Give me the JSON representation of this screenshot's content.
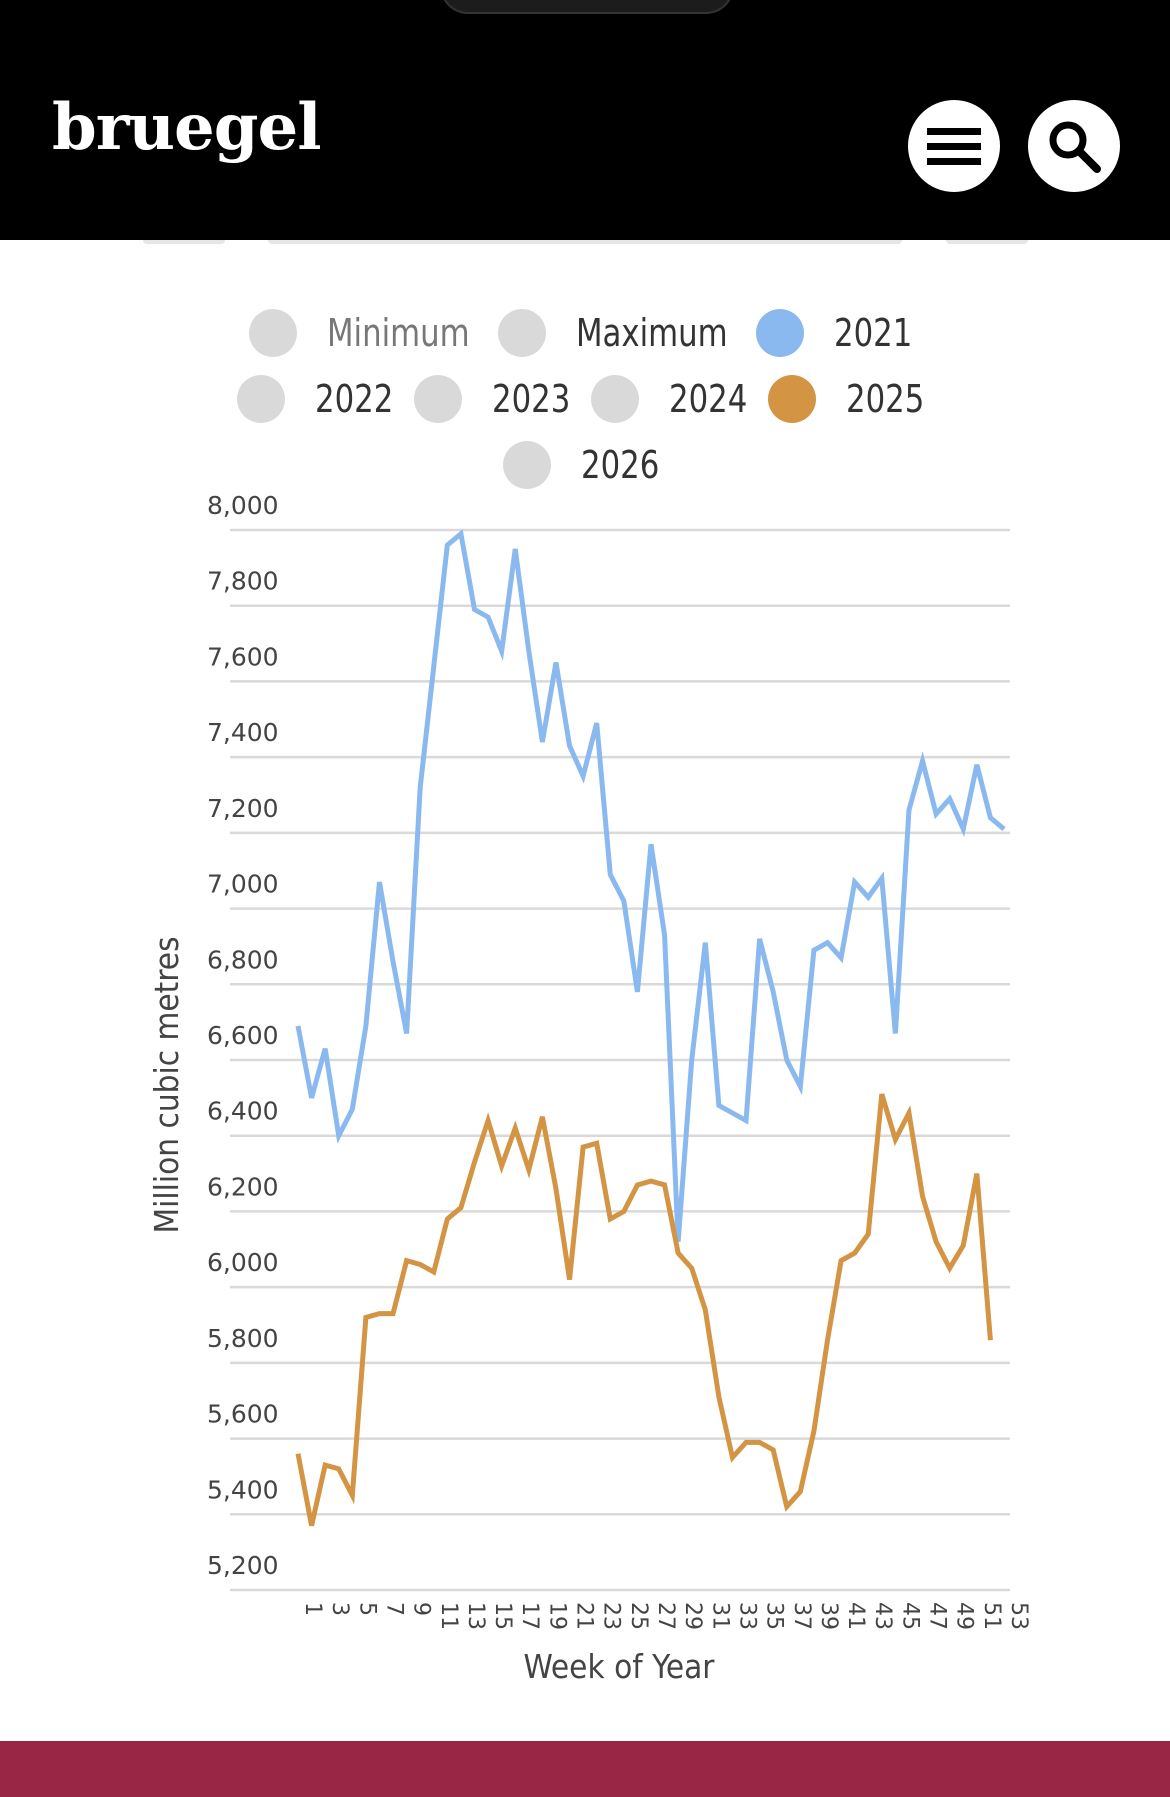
{
  "header": {
    "logo": "bruegel",
    "menu_icon": "hamburger-menu-icon",
    "search_icon": "search-icon"
  },
  "colors": {
    "series_2021": "#8ab9ef",
    "series_2025": "#d39444",
    "inactive": "#d9d9d9",
    "gridline": "#d9d9d9",
    "footer": "#992645"
  },
  "legend": {
    "rows": [
      [
        {
          "label": "Minimum",
          "active": false,
          "dim": true
        },
        {
          "label": "Maximum",
          "active": false
        },
        {
          "label": "2021",
          "active": true,
          "color": "#8ab9ef"
        }
      ],
      [
        {
          "label": "2022",
          "active": false
        },
        {
          "label": "2023",
          "active": false
        },
        {
          "label": "2024",
          "active": false
        },
        {
          "label": "2025",
          "active": true,
          "color": "#d39444"
        }
      ],
      [
        {
          "label": "2026",
          "active": false
        }
      ]
    ]
  },
  "chart_data": {
    "type": "line",
    "title": "",
    "xlabel": "Week of Year",
    "ylabel": "Million cubic metres",
    "ylim": [
      5200,
      8000
    ],
    "yticks": [
      5200,
      5400,
      5600,
      5800,
      6000,
      6200,
      6400,
      6600,
      6800,
      7000,
      7200,
      7400,
      7600,
      7800,
      8000
    ],
    "ytick_labels": [
      "5,200",
      "5,400",
      "5,600",
      "5,800",
      "6,000",
      "6,200",
      "6,400",
      "6,600",
      "6,800",
      "7,000",
      "7,200",
      "7,400",
      "7,600",
      "7,800",
      "8,000"
    ],
    "xlim": [
      1,
      53
    ],
    "xtick_labels": [
      "1",
      "3",
      "5",
      "7",
      "9",
      "11",
      "13",
      "15",
      "17",
      "19",
      "21",
      "23",
      "25",
      "27",
      "29",
      "31",
      "33",
      "35",
      "37",
      "39",
      "41",
      "43",
      "45",
      "47",
      "49",
      "51",
      "53"
    ],
    "grid": true,
    "legend_position": "top",
    "series": [
      {
        "name": "2021",
        "color": "#8ab9ef",
        "x": [
          1,
          2,
          3,
          4,
          5,
          6,
          7,
          8,
          9,
          10,
          11,
          12,
          13,
          14,
          15,
          16,
          17,
          18,
          19,
          20,
          21,
          22,
          23,
          24,
          25,
          26,
          27,
          28,
          29,
          30,
          31,
          32,
          33,
          34,
          35,
          36,
          37,
          38,
          39,
          40,
          41,
          42,
          43,
          44,
          45,
          46,
          47,
          48,
          49,
          50,
          51,
          52,
          53
        ],
        "values": [
          6690,
          6500,
          6630,
          6400,
          6470,
          6690,
          7070,
          6860,
          6670,
          7320,
          7640,
          7960,
          7990,
          7790,
          7770,
          7680,
          7950,
          7680,
          7440,
          7650,
          7430,
          7350,
          7490,
          7090,
          7020,
          6780,
          7170,
          6930,
          6120,
          6600,
          6910,
          6480,
          6460,
          6440,
          6920,
          6780,
          6600,
          6530,
          6890,
          6910,
          6870,
          7070,
          7030,
          7080,
          6670,
          7260,
          7390,
          7250,
          7290,
          7210,
          7380,
          7240,
          7210
        ]
      },
      {
        "name": "2025",
        "color": "#d39444",
        "x": [
          1,
          2,
          3,
          4,
          5,
          6,
          7,
          8,
          9,
          10,
          11,
          12,
          13,
          14,
          15,
          16,
          17,
          18,
          19,
          20,
          21,
          22,
          23,
          24,
          25,
          26,
          27,
          28,
          29,
          30,
          31,
          32,
          33,
          34,
          35,
          36,
          37,
          38,
          39,
          40,
          41,
          42,
          43,
          44,
          45,
          46,
          47,
          48,
          49,
          50,
          51,
          52
        ],
        "values": [
          5560,
          5370,
          5530,
          5520,
          5450,
          5920,
          5930,
          5930,
          6070,
          6060,
          6040,
          6180,
          6210,
          6330,
          6440,
          6320,
          6420,
          6310,
          6450,
          6260,
          6020,
          6370,
          6380,
          6180,
          6200,
          6270,
          6280,
          6270,
          6090,
          6050,
          5940,
          5710,
          5550,
          5590,
          5590,
          5570,
          5420,
          5460,
          5620,
          5860,
          6070,
          6090,
          6140,
          6510,
          6390,
          6460,
          6240,
          6120,
          6050,
          6110,
          6300,
          5860
        ]
      }
    ]
  }
}
